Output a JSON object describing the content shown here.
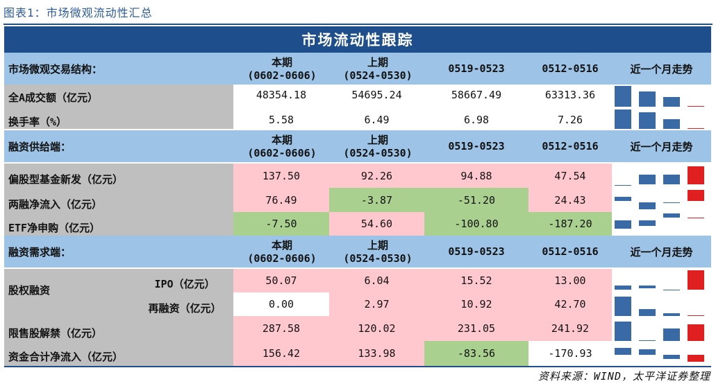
{
  "figure_title": "图表1：市场微观流动性汇总",
  "table_title": "市场流动性跟踪",
  "source": "资料来源：WIND，太平洋证券整理",
  "col_headers": {
    "cur_line1": "本期",
    "cur_line2": "(0602-0606)",
    "prev_line1": "上期",
    "prev_line2": "(0524-0530)",
    "p3": "0519-0523",
    "p4": "0512-0516",
    "trend": "近一个月走势"
  },
  "sections": {
    "s1": "市场微观交易结构：",
    "s2": "融资供给端：",
    "s3": "融资需求端："
  },
  "rows": {
    "turnover": {
      "label": "全A成交额（亿元）",
      "v": [
        "48354.18",
        "54695.24",
        "58667.49",
        "63313.36"
      ]
    },
    "turnrate": {
      "label": "换手率（%）",
      "v": [
        "5.58",
        "6.49",
        "6.98",
        "7.26"
      ]
    },
    "newfund": {
      "label": "偏股型基金新发（亿元）",
      "v": [
        "137.50",
        "92.26",
        "94.88",
        "47.54"
      ]
    },
    "margin": {
      "label": "两融净流入（亿元）",
      "v": [
        "76.49",
        "-3.87",
        "-51.20",
        "24.43"
      ]
    },
    "etf": {
      "label": "ETF净申购（亿元）",
      "v": [
        "-7.50",
        "54.60",
        "-100.80",
        "-187.20"
      ]
    },
    "equity": {
      "label": "股权融资"
    },
    "ipo": {
      "label": "IPO（亿元）",
      "v": [
        "50.07",
        "6.04",
        "15.52",
        "13.00"
      ]
    },
    "refin": {
      "label": "再融资（亿元）",
      "v": [
        "0.00",
        "2.97",
        "10.92",
        "42.70"
      ]
    },
    "unlock": {
      "label": "限售股解禁（亿元）",
      "v": [
        "287.58",
        "120.02",
        "231.05",
        "241.92"
      ]
    },
    "netflow": {
      "label": "资金合计净流入（亿元）",
      "v": [
        "156.42",
        "133.98",
        "-83.56",
        "-170.93"
      ]
    }
  },
  "colors": {
    "header": "#1f4e8c",
    "section": "#9dc3e6",
    "label": "#bfbfbf",
    "up": "#ffc7ce",
    "down": "#a9d08e",
    "bar_blue": "#3a6aa6",
    "bar_red": "#e02020"
  }
}
